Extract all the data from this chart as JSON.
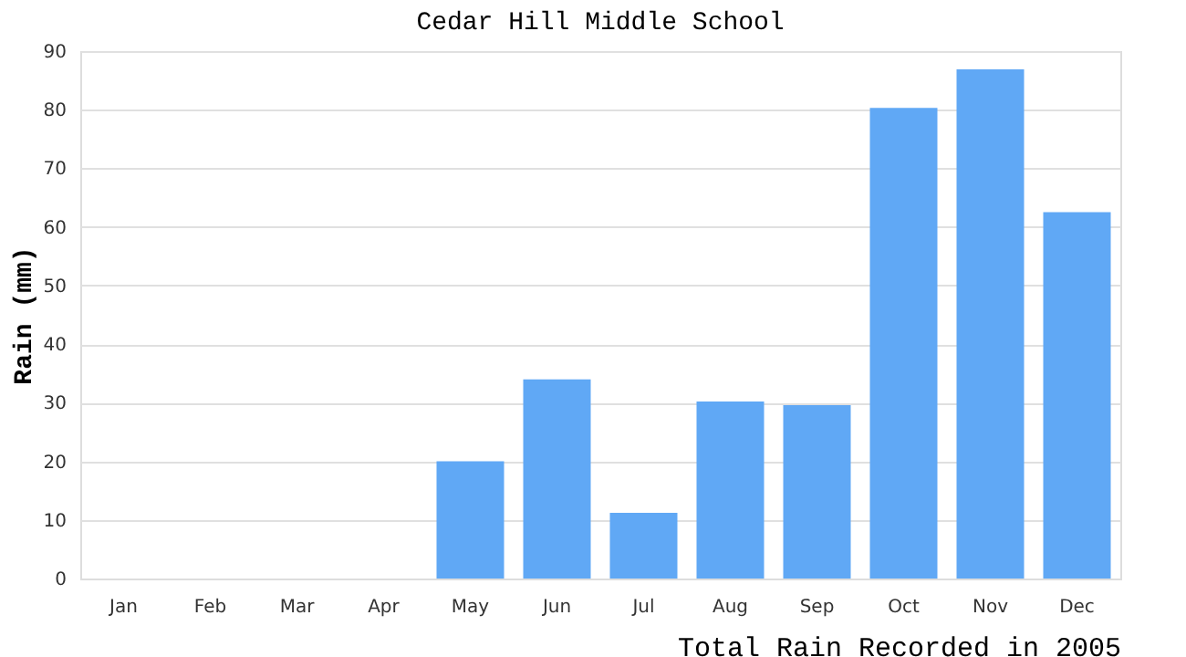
{
  "chart_data": {
    "type": "bar",
    "title": "Cedar Hill Middle School",
    "xlabel": "Total Rain Recorded in 2005",
    "ylabel": "Rain (mm)",
    "categories": [
      "Jan",
      "Feb",
      "Mar",
      "Apr",
      "May",
      "Jun",
      "Jul",
      "Aug",
      "Sep",
      "Oct",
      "Nov",
      "Dec"
    ],
    "values": [
      0,
      0,
      0,
      0,
      20,
      34,
      11.2,
      30.2,
      29.6,
      80.3,
      86.9,
      62.5
    ],
    "color": "#60a8f5",
    "ylim": [
      0,
      90
    ],
    "yticks": [
      0,
      10,
      20,
      30,
      40,
      50,
      60,
      70,
      80,
      90
    ],
    "grid": "y"
  }
}
